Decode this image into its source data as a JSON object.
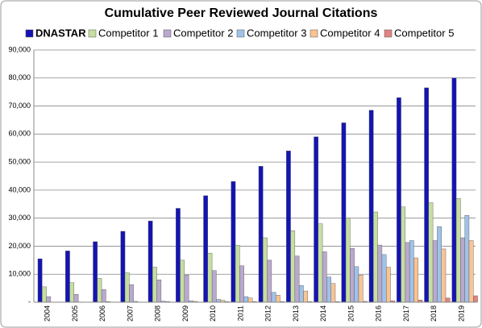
{
  "chart_data": {
    "type": "bar",
    "title": "Cumulative Peer Reviewed Journal Citations",
    "categories": [
      "2004",
      "2005",
      "2006",
      "2007",
      "2008",
      "2009",
      "2010",
      "2011",
      "2012",
      "2013",
      "2014",
      "2015",
      "2016",
      "2017",
      "2018",
      "2019"
    ],
    "series": [
      {
        "name": "DNASTAR",
        "color": "#1414b4",
        "values": [
          15500,
          18300,
          21600,
          25300,
          29000,
          33500,
          38000,
          43100,
          48500,
          54000,
          59000,
          64000,
          68500,
          73000,
          76500,
          80000
        ]
      },
      {
        "name": "Competitor 1",
        "color": "#c6dea0",
        "values": [
          5500,
          7000,
          8500,
          10500,
          12500,
          15000,
          17500,
          20300,
          23000,
          25500,
          28000,
          30000,
          32200,
          34000,
          35500,
          37000
        ]
      },
      {
        "name": "Competitor 2",
        "color": "#b9a9cf",
        "values": [
          2000,
          2800,
          4500,
          6300,
          8000,
          9700,
          11300,
          13000,
          15000,
          16500,
          18000,
          19200,
          20400,
          21300,
          22000,
          23000
        ]
      },
      {
        "name": "Competitor 3",
        "color": "#9fc2e8",
        "values": [
          0,
          100,
          200,
          300,
          400,
          500,
          1000,
          2000,
          3500,
          6000,
          9000,
          12700,
          17000,
          22000,
          27000,
          31000
        ]
      },
      {
        "name": "Competitor 4",
        "color": "#f9c393",
        "values": [
          0,
          0,
          0,
          100,
          200,
          300,
          700,
          1500,
          2500,
          4000,
          6700,
          9700,
          12500,
          15800,
          19000,
          22000
        ]
      },
      {
        "name": "Competitor 5",
        "color": "#e28383",
        "values": [
          0,
          0,
          0,
          0,
          100,
          100,
          200,
          200,
          200,
          200,
          200,
          300,
          500,
          800,
          1500,
          2300
        ]
      }
    ],
    "ylim": [
      0,
      90000
    ],
    "yticks": [
      {
        "value": 0,
        "label": "-"
      },
      {
        "value": 10000,
        "label": "10,000"
      },
      {
        "value": 20000,
        "label": "20,000"
      },
      {
        "value": 30000,
        "label": "30,000"
      },
      {
        "value": 40000,
        "label": "40,000"
      },
      {
        "value": 50000,
        "label": "50,000"
      },
      {
        "value": 60000,
        "label": "60,000"
      },
      {
        "value": 70000,
        "label": "70,000"
      },
      {
        "value": 80000,
        "label": "80,000"
      },
      {
        "value": 90000,
        "label": "90,000"
      }
    ],
    "grid": true
  }
}
